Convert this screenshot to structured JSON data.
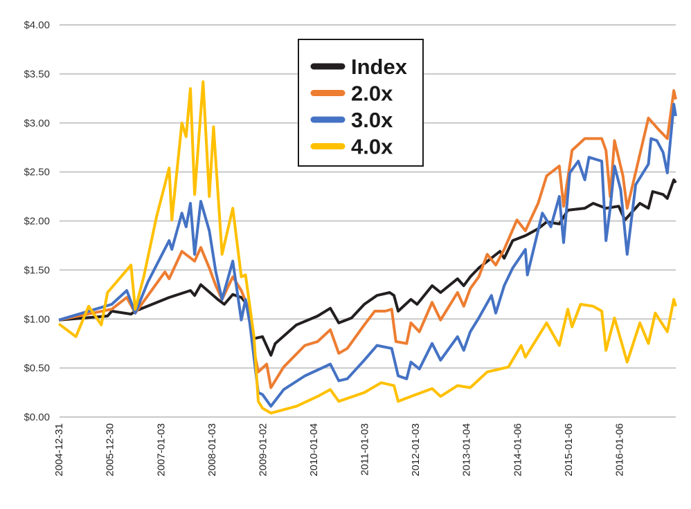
{
  "chart_data": {
    "type": "line",
    "title": "",
    "xlabel": "",
    "ylabel": "",
    "ylim": [
      0,
      4
    ],
    "y_ticks": [
      "$0.00",
      "$0.50",
      "$1.00",
      "$1.50",
      "$2.00",
      "$2.50",
      "$3.00",
      "$3.50",
      "$4.00"
    ],
    "y_tick_values": [
      0,
      0.5,
      1,
      1.5,
      2,
      2.5,
      3,
      3.5,
      4
    ],
    "x_ticks": [
      "2004-12-31",
      "2005-12-30",
      "2007-01-03",
      "2008-01-03",
      "2009-01-02",
      "2010-01-04",
      "2011-01-03",
      "2012-01-03",
      "2013-01-04",
      "2014-01-06",
      "2015-01-06",
      "2016-01-06"
    ],
    "xlim": [
      "2004-12-31",
      "2017-02-15"
    ],
    "grid": "horizontal",
    "legend_position": "top-center",
    "series": [
      {
        "name": "Index",
        "color": "#231f20",
        "points": [
          [
            "2005-01-01",
            0.99
          ],
          [
            "2005-12-15",
            1.03
          ],
          [
            "2006-01-15",
            1.08
          ],
          [
            "2006-06-01",
            1.05
          ],
          [
            "2006-07-01",
            1.08
          ],
          [
            "2007-03-01",
            1.22
          ],
          [
            "2007-08-01",
            1.29
          ],
          [
            "2007-09-01",
            1.24
          ],
          [
            "2007-10-15",
            1.35
          ],
          [
            "2008-02-15",
            1.2
          ],
          [
            "2008-04-01",
            1.15
          ],
          [
            "2008-06-01",
            1.25
          ],
          [
            "2008-08-01",
            1.22
          ],
          [
            "2008-09-01",
            1.17
          ],
          [
            "2008-10-01",
            1.1
          ],
          [
            "2008-11-01",
            0.8
          ],
          [
            "2009-01-01",
            0.82
          ],
          [
            "2009-03-01",
            0.63
          ],
          [
            "2009-04-01",
            0.75
          ],
          [
            "2009-09-01",
            0.94
          ],
          [
            "2010-02-01",
            1.03
          ],
          [
            "2010-05-01",
            1.11
          ],
          [
            "2010-07-01",
            0.96
          ],
          [
            "2010-10-01",
            1.01
          ],
          [
            "2011-01-01",
            1.15
          ],
          [
            "2011-04-01",
            1.24
          ],
          [
            "2011-07-01",
            1.27
          ],
          [
            "2011-08-01",
            1.24
          ],
          [
            "2011-09-01",
            1.08
          ],
          [
            "2011-12-01",
            1.2
          ],
          [
            "2012-01-15",
            1.15
          ],
          [
            "2012-05-01",
            1.34
          ],
          [
            "2012-07-01",
            1.27
          ],
          [
            "2012-11-01",
            1.41
          ],
          [
            "2012-12-15",
            1.34
          ],
          [
            "2013-02-01",
            1.43
          ],
          [
            "2013-04-01",
            1.52
          ],
          [
            "2013-09-01",
            1.69
          ],
          [
            "2013-10-01",
            1.62
          ],
          [
            "2013-12-01",
            1.8
          ],
          [
            "2014-03-01",
            1.85
          ],
          [
            "2014-06-01",
            1.92
          ],
          [
            "2014-08-01",
            1.99
          ],
          [
            "2014-11-01",
            1.97
          ],
          [
            "2015-01-01",
            2.11
          ],
          [
            "2015-05-01",
            2.13
          ],
          [
            "2015-07-01",
            2.18
          ],
          [
            "2015-10-01",
            2.13
          ],
          [
            "2016-01-01",
            2.15
          ],
          [
            "2016-02-15",
            2.01
          ],
          [
            "2016-06-01",
            2.18
          ],
          [
            "2016-08-01",
            2.13
          ],
          [
            "2016-09-01",
            2.3
          ],
          [
            "2016-11-15",
            2.27
          ],
          [
            "2016-12-15",
            2.23
          ],
          [
            "2017-02-01",
            2.42
          ],
          [
            "2017-02-15",
            2.39
          ]
        ]
      },
      {
        "name": "2.0x",
        "color": "#ed7d31",
        "points": [
          [
            "2005-01-01",
            0.99
          ],
          [
            "2006-01-15",
            1.1
          ],
          [
            "2006-05-01",
            1.22
          ],
          [
            "2006-07-01",
            1.06
          ],
          [
            "2006-10-01",
            1.24
          ],
          [
            "2007-02-01",
            1.48
          ],
          [
            "2007-03-01",
            1.41
          ],
          [
            "2007-06-01",
            1.69
          ],
          [
            "2007-09-01",
            1.59
          ],
          [
            "2007-10-15",
            1.73
          ],
          [
            "2007-12-15",
            1.52
          ],
          [
            "2008-02-01",
            1.34
          ],
          [
            "2008-03-15",
            1.2
          ],
          [
            "2008-06-01",
            1.43
          ],
          [
            "2008-08-01",
            1.29
          ],
          [
            "2008-10-01",
            1.08
          ],
          [
            "2008-11-01",
            0.68
          ],
          [
            "2008-12-01",
            0.46
          ],
          [
            "2009-02-01",
            0.54
          ],
          [
            "2009-03-01",
            0.3
          ],
          [
            "2009-06-01",
            0.51
          ],
          [
            "2009-11-01",
            0.73
          ],
          [
            "2010-02-01",
            0.77
          ],
          [
            "2010-05-01",
            0.89
          ],
          [
            "2010-07-01",
            0.65
          ],
          [
            "2010-09-01",
            0.7
          ],
          [
            "2011-01-01",
            0.94
          ],
          [
            "2011-03-15",
            1.08
          ],
          [
            "2011-06-01",
            1.08
          ],
          [
            "2011-07-15",
            1.1
          ],
          [
            "2011-08-15",
            0.77
          ],
          [
            "2011-11-01",
            0.75
          ],
          [
            "2011-12-01",
            0.96
          ],
          [
            "2012-02-01",
            0.87
          ],
          [
            "2012-05-01",
            1.17
          ],
          [
            "2012-07-01",
            0.99
          ],
          [
            "2012-11-01",
            1.27
          ],
          [
            "2012-12-15",
            1.13
          ],
          [
            "2013-02-01",
            1.31
          ],
          [
            "2013-04-01",
            1.43
          ],
          [
            "2013-06-01",
            1.66
          ],
          [
            "2013-08-01",
            1.55
          ],
          [
            "2013-10-01",
            1.71
          ],
          [
            "2014-01-01",
            2.01
          ],
          [
            "2014-03-01",
            1.9
          ],
          [
            "2014-06-01",
            2.18
          ],
          [
            "2014-08-01",
            2.46
          ],
          [
            "2014-11-01",
            2.56
          ],
          [
            "2014-12-01",
            2.15
          ],
          [
            "2015-02-01",
            2.72
          ],
          [
            "2015-05-01",
            2.84
          ],
          [
            "2015-09-01",
            2.84
          ],
          [
            "2015-10-01",
            2.72
          ],
          [
            "2015-11-01",
            2.25
          ],
          [
            "2015-12-01",
            2.82
          ],
          [
            "2016-02-01",
            2.46
          ],
          [
            "2016-03-01",
            2.13
          ],
          [
            "2016-06-01",
            2.68
          ],
          [
            "2016-08-01",
            3.05
          ],
          [
            "2016-10-15",
            2.93
          ],
          [
            "2016-12-15",
            2.84
          ],
          [
            "2017-02-01",
            3.33
          ],
          [
            "2017-02-15",
            3.24
          ]
        ]
      },
      {
        "name": "3.0x",
        "color": "#4472c4",
        "points": [
          [
            "2005-01-01",
            0.99
          ],
          [
            "2006-01-15",
            1.15
          ],
          [
            "2006-05-01",
            1.29
          ],
          [
            "2006-07-01",
            1.06
          ],
          [
            "2006-10-01",
            1.38
          ],
          [
            "2007-03-01",
            1.8
          ],
          [
            "2007-03-20",
            1.71
          ],
          [
            "2007-06-01",
            2.08
          ],
          [
            "2007-07-01",
            1.94
          ],
          [
            "2007-08-01",
            2.18
          ],
          [
            "2007-09-01",
            1.66
          ],
          [
            "2007-10-15",
            2.2
          ],
          [
            "2007-12-15",
            1.9
          ],
          [
            "2008-02-01",
            1.48
          ],
          [
            "2008-03-15",
            1.2
          ],
          [
            "2008-06-01",
            1.59
          ],
          [
            "2008-08-01",
            0.99
          ],
          [
            "2008-09-01",
            1.2
          ],
          [
            "2008-10-01",
            0.96
          ],
          [
            "2008-12-01",
            0.25
          ],
          [
            "2009-01-01",
            0.23
          ],
          [
            "2009-03-01",
            0.11
          ],
          [
            "2009-06-01",
            0.28
          ],
          [
            "2009-11-01",
            0.42
          ],
          [
            "2010-05-01",
            0.54
          ],
          [
            "2010-07-01",
            0.37
          ],
          [
            "2010-09-01",
            0.39
          ],
          [
            "2011-01-01",
            0.58
          ],
          [
            "2011-04-01",
            0.73
          ],
          [
            "2011-07-15",
            0.7
          ],
          [
            "2011-09-01",
            0.42
          ],
          [
            "2011-11-01",
            0.39
          ],
          [
            "2011-12-01",
            0.56
          ],
          [
            "2012-02-01",
            0.49
          ],
          [
            "2012-05-01",
            0.75
          ],
          [
            "2012-07-01",
            0.58
          ],
          [
            "2012-11-01",
            0.82
          ],
          [
            "2012-12-15",
            0.68
          ],
          [
            "2013-02-01",
            0.87
          ],
          [
            "2013-04-01",
            1.01
          ],
          [
            "2013-07-01",
            1.24
          ],
          [
            "2013-08-01",
            1.06
          ],
          [
            "2013-10-01",
            1.34
          ],
          [
            "2013-12-01",
            1.52
          ],
          [
            "2014-03-01",
            1.71
          ],
          [
            "2014-03-15",
            1.45
          ],
          [
            "2014-07-01",
            2.08
          ],
          [
            "2014-09-01",
            1.94
          ],
          [
            "2014-11-01",
            2.25
          ],
          [
            "2014-12-01",
            1.78
          ],
          [
            "2015-01-15",
            2.49
          ],
          [
            "2015-03-15",
            2.61
          ],
          [
            "2015-05-01",
            2.42
          ],
          [
            "2015-06-01",
            2.65
          ],
          [
            "2015-09-01",
            2.61
          ],
          [
            "2015-10-01",
            1.8
          ],
          [
            "2015-11-01",
            2.13
          ],
          [
            "2015-12-01",
            2.56
          ],
          [
            "2016-01-15",
            2.32
          ],
          [
            "2016-03-01",
            1.66
          ],
          [
            "2016-05-01",
            2.37
          ],
          [
            "2016-08-01",
            2.58
          ],
          [
            "2016-08-20",
            2.84
          ],
          [
            "2016-10-01",
            2.82
          ],
          [
            "2016-11-15",
            2.7
          ],
          [
            "2016-12-15",
            2.49
          ],
          [
            "2017-02-01",
            3.19
          ],
          [
            "2017-02-15",
            3.07
          ]
        ]
      },
      {
        "name": "4.0x",
        "color": "#ffc000",
        "points": [
          [
            "2005-01-01",
            0.95
          ],
          [
            "2005-05-01",
            0.82
          ],
          [
            "2005-08-01",
            1.13
          ],
          [
            "2005-11-01",
            0.94
          ],
          [
            "2005-12-15",
            1.27
          ],
          [
            "2006-06-01",
            1.55
          ],
          [
            "2006-07-01",
            1.1
          ],
          [
            "2006-09-01",
            1.43
          ],
          [
            "2006-12-01",
            2.04
          ],
          [
            "2007-03-01",
            2.54
          ],
          [
            "2007-03-20",
            2.01
          ],
          [
            "2007-06-01",
            3.0
          ],
          [
            "2007-07-01",
            2.86
          ],
          [
            "2007-08-01",
            3.35
          ],
          [
            "2007-09-01",
            2.27
          ],
          [
            "2007-11-01",
            3.42
          ],
          [
            "2007-12-15",
            2.25
          ],
          [
            "2008-01-15",
            2.96
          ],
          [
            "2008-03-15",
            1.66
          ],
          [
            "2008-06-01",
            2.13
          ],
          [
            "2008-08-01",
            1.43
          ],
          [
            "2008-09-01",
            1.45
          ],
          [
            "2008-11-01",
            0.82
          ],
          [
            "2008-12-01",
            0.16
          ],
          [
            "2009-01-01",
            0.09
          ],
          [
            "2009-03-01",
            0.04
          ],
          [
            "2009-09-01",
            0.11
          ],
          [
            "2010-02-01",
            0.21
          ],
          [
            "2010-05-01",
            0.28
          ],
          [
            "2010-07-01",
            0.16
          ],
          [
            "2011-01-01",
            0.25
          ],
          [
            "2011-05-01",
            0.35
          ],
          [
            "2011-08-01",
            0.32
          ],
          [
            "2011-09-01",
            0.16
          ],
          [
            "2011-12-01",
            0.21
          ],
          [
            "2012-05-01",
            0.29
          ],
          [
            "2012-07-01",
            0.21
          ],
          [
            "2012-11-01",
            0.32
          ],
          [
            "2013-02-01",
            0.3
          ],
          [
            "2013-06-01",
            0.46
          ],
          [
            "2013-11-01",
            0.51
          ],
          [
            "2014-02-01",
            0.73
          ],
          [
            "2014-03-01",
            0.61
          ],
          [
            "2014-08-01",
            0.96
          ],
          [
            "2014-11-01",
            0.73
          ],
          [
            "2015-01-01",
            1.1
          ],
          [
            "2015-02-01",
            0.92
          ],
          [
            "2015-04-01",
            1.15
          ],
          [
            "2015-07-01",
            1.13
          ],
          [
            "2015-09-01",
            1.08
          ],
          [
            "2015-10-01",
            0.68
          ],
          [
            "2015-12-01",
            1.01
          ],
          [
            "2016-03-01",
            0.56
          ],
          [
            "2016-06-01",
            0.96
          ],
          [
            "2016-08-01",
            0.75
          ],
          [
            "2016-09-20",
            1.06
          ],
          [
            "2016-12-15",
            0.87
          ],
          [
            "2017-02-01",
            1.2
          ],
          [
            "2017-02-15",
            1.13
          ]
        ]
      }
    ]
  }
}
